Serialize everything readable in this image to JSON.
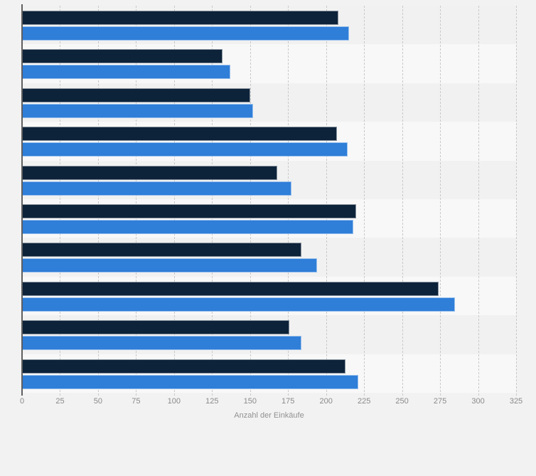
{
  "page": {
    "background_color": "#f2f2f2",
    "band_color_a": "#f1f1f1",
    "band_color_b": "#f8f8f8",
    "gridline_color": "#c9c9c9",
    "axis_line_color": "#5f5f5f",
    "tick_label_color": "#8a8a8a",
    "axis_title_color": "#919191"
  },
  "chart_data": {
    "type": "bar",
    "orientation": "horizontal",
    "title": "",
    "xlabel": "Anzahl der Einkäufe",
    "ylabel": "",
    "legend": "none",
    "grid": "vertical-dashed",
    "xlim": [
      0,
      325
    ],
    "x_ticks": [
      0,
      25,
      50,
      75,
      100,
      125,
      150,
      175,
      200,
      225,
      250,
      275,
      300,
      325
    ],
    "categories": [
      "",
      "",
      "",
      "",
      "",
      "",
      "",
      "",
      "",
      ""
    ],
    "series": [
      {
        "name": "series-dark-navy",
        "color": "#0d233a",
        "values": [
          208,
          132,
          150,
          207,
          168,
          220,
          184,
          274,
          176,
          213
        ]
      },
      {
        "name": "series-blue",
        "color": "#2f7ed8",
        "values": [
          215,
          137,
          152,
          214,
          177,
          218,
          194,
          285,
          184,
          221
        ]
      }
    ]
  }
}
